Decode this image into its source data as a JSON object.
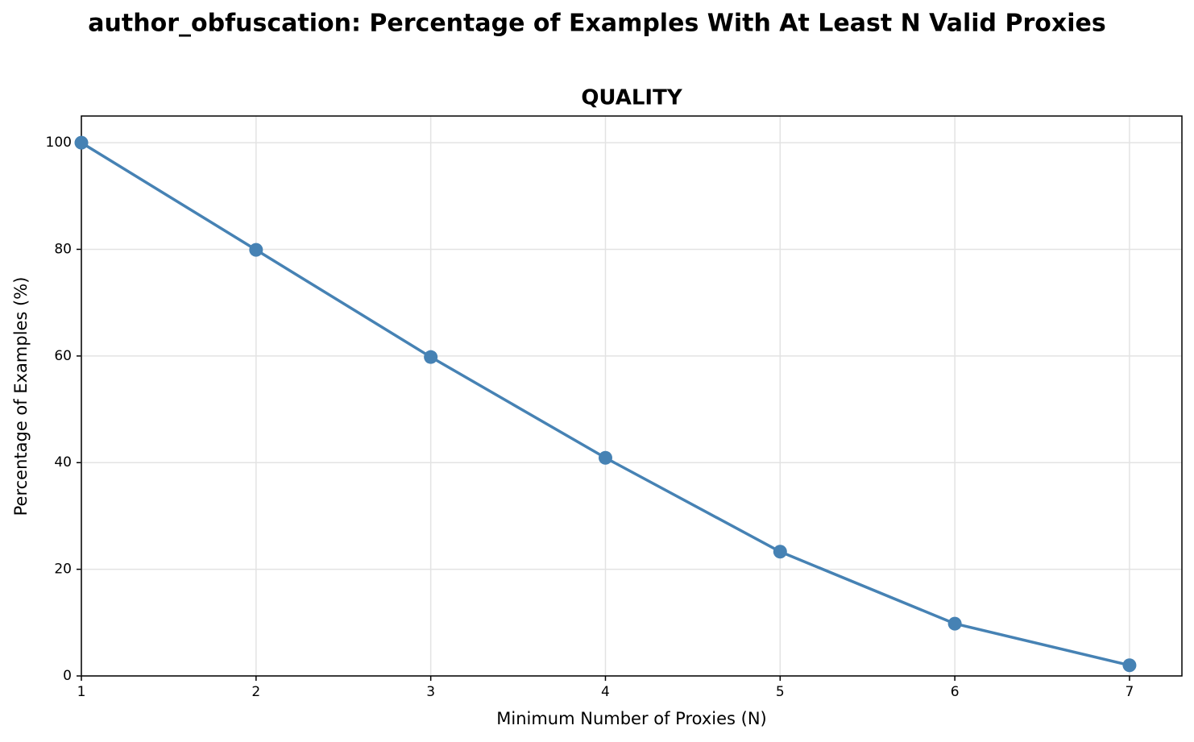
{
  "chart_data": {
    "type": "line",
    "title": "author_obfuscation: Percentage of Examples With At Least N Valid Proxies",
    "subtitle": "QUALITY",
    "x_label": "Minimum Number of Proxies (N)",
    "y_label": "Percentage of Examples (%)",
    "x": [
      1,
      2,
      3,
      4,
      5,
      6,
      7
    ],
    "series": [
      {
        "name": "QUALITY",
        "color": "#4682b4",
        "values": [
          100,
          79.9,
          59.8,
          40.9,
          23.3,
          9.8,
          2.0
        ]
      }
    ],
    "xlim": [
      1,
      7.3
    ],
    "xticks": [
      1,
      2,
      3,
      4,
      5,
      6,
      7
    ],
    "ylim": [
      0,
      105
    ],
    "yticks": [
      0,
      20,
      40,
      60,
      80,
      100
    ],
    "grid": true
  }
}
